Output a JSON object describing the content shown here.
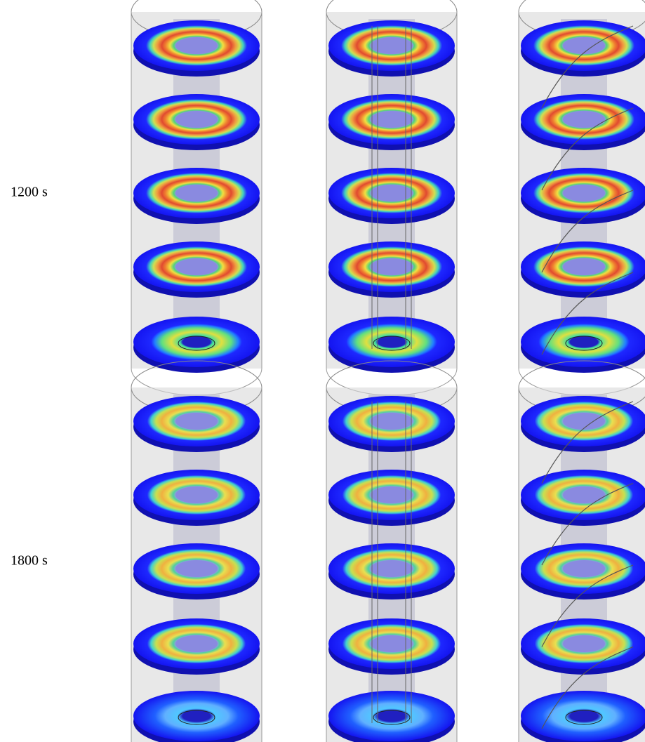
{
  "rows": [
    {
      "label": "1200 s"
    },
    {
      "label": "1800 s"
    }
  ]
}
